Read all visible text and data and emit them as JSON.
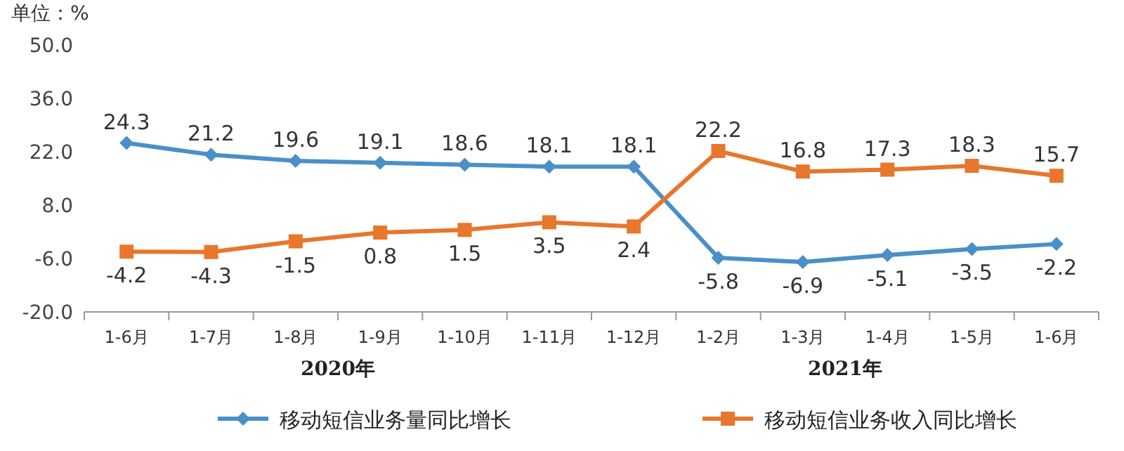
{
  "chart_data": {
    "type": "line",
    "ylabel": "单位：%",
    "categories": [
      "1-6月",
      "1-7月",
      "1-8月",
      "1-9月",
      "1-10月",
      "1-11月",
      "1-12月",
      "1-2月",
      "1-3月",
      "1-4月",
      "1-5月",
      "1-6月"
    ],
    "series": [
      {
        "name": "移动短信业务量同比增长",
        "color": "#4a90c8",
        "marker": "diamond",
        "values": [
          24.3,
          21.2,
          19.6,
          19.1,
          18.6,
          18.1,
          18.1,
          -5.8,
          -6.9,
          -5.1,
          -3.5,
          -2.2
        ]
      },
      {
        "name": "移动短信业务收入同比增长",
        "color": "#e8762d",
        "marker": "square",
        "values": [
          -4.2,
          -4.3,
          -1.5,
          0.8,
          1.5,
          3.5,
          2.4,
          22.2,
          16.8,
          17.3,
          18.3,
          15.7
        ]
      }
    ],
    "ylim": [
      -20,
      50
    ],
    "yticks": [
      {
        "value": -20,
        "label": "-20.0"
      },
      {
        "value": -6,
        "label": "-6.0"
      },
      {
        "value": 8,
        "label": "8.0"
      },
      {
        "value": 22,
        "label": "22.0"
      },
      {
        "value": 36,
        "label": "36.0"
      },
      {
        "value": 50,
        "label": "50.0"
      }
    ],
    "data_labels": true,
    "legend": "bottom",
    "annotations": [
      "2020年",
      "2021年"
    ]
  }
}
